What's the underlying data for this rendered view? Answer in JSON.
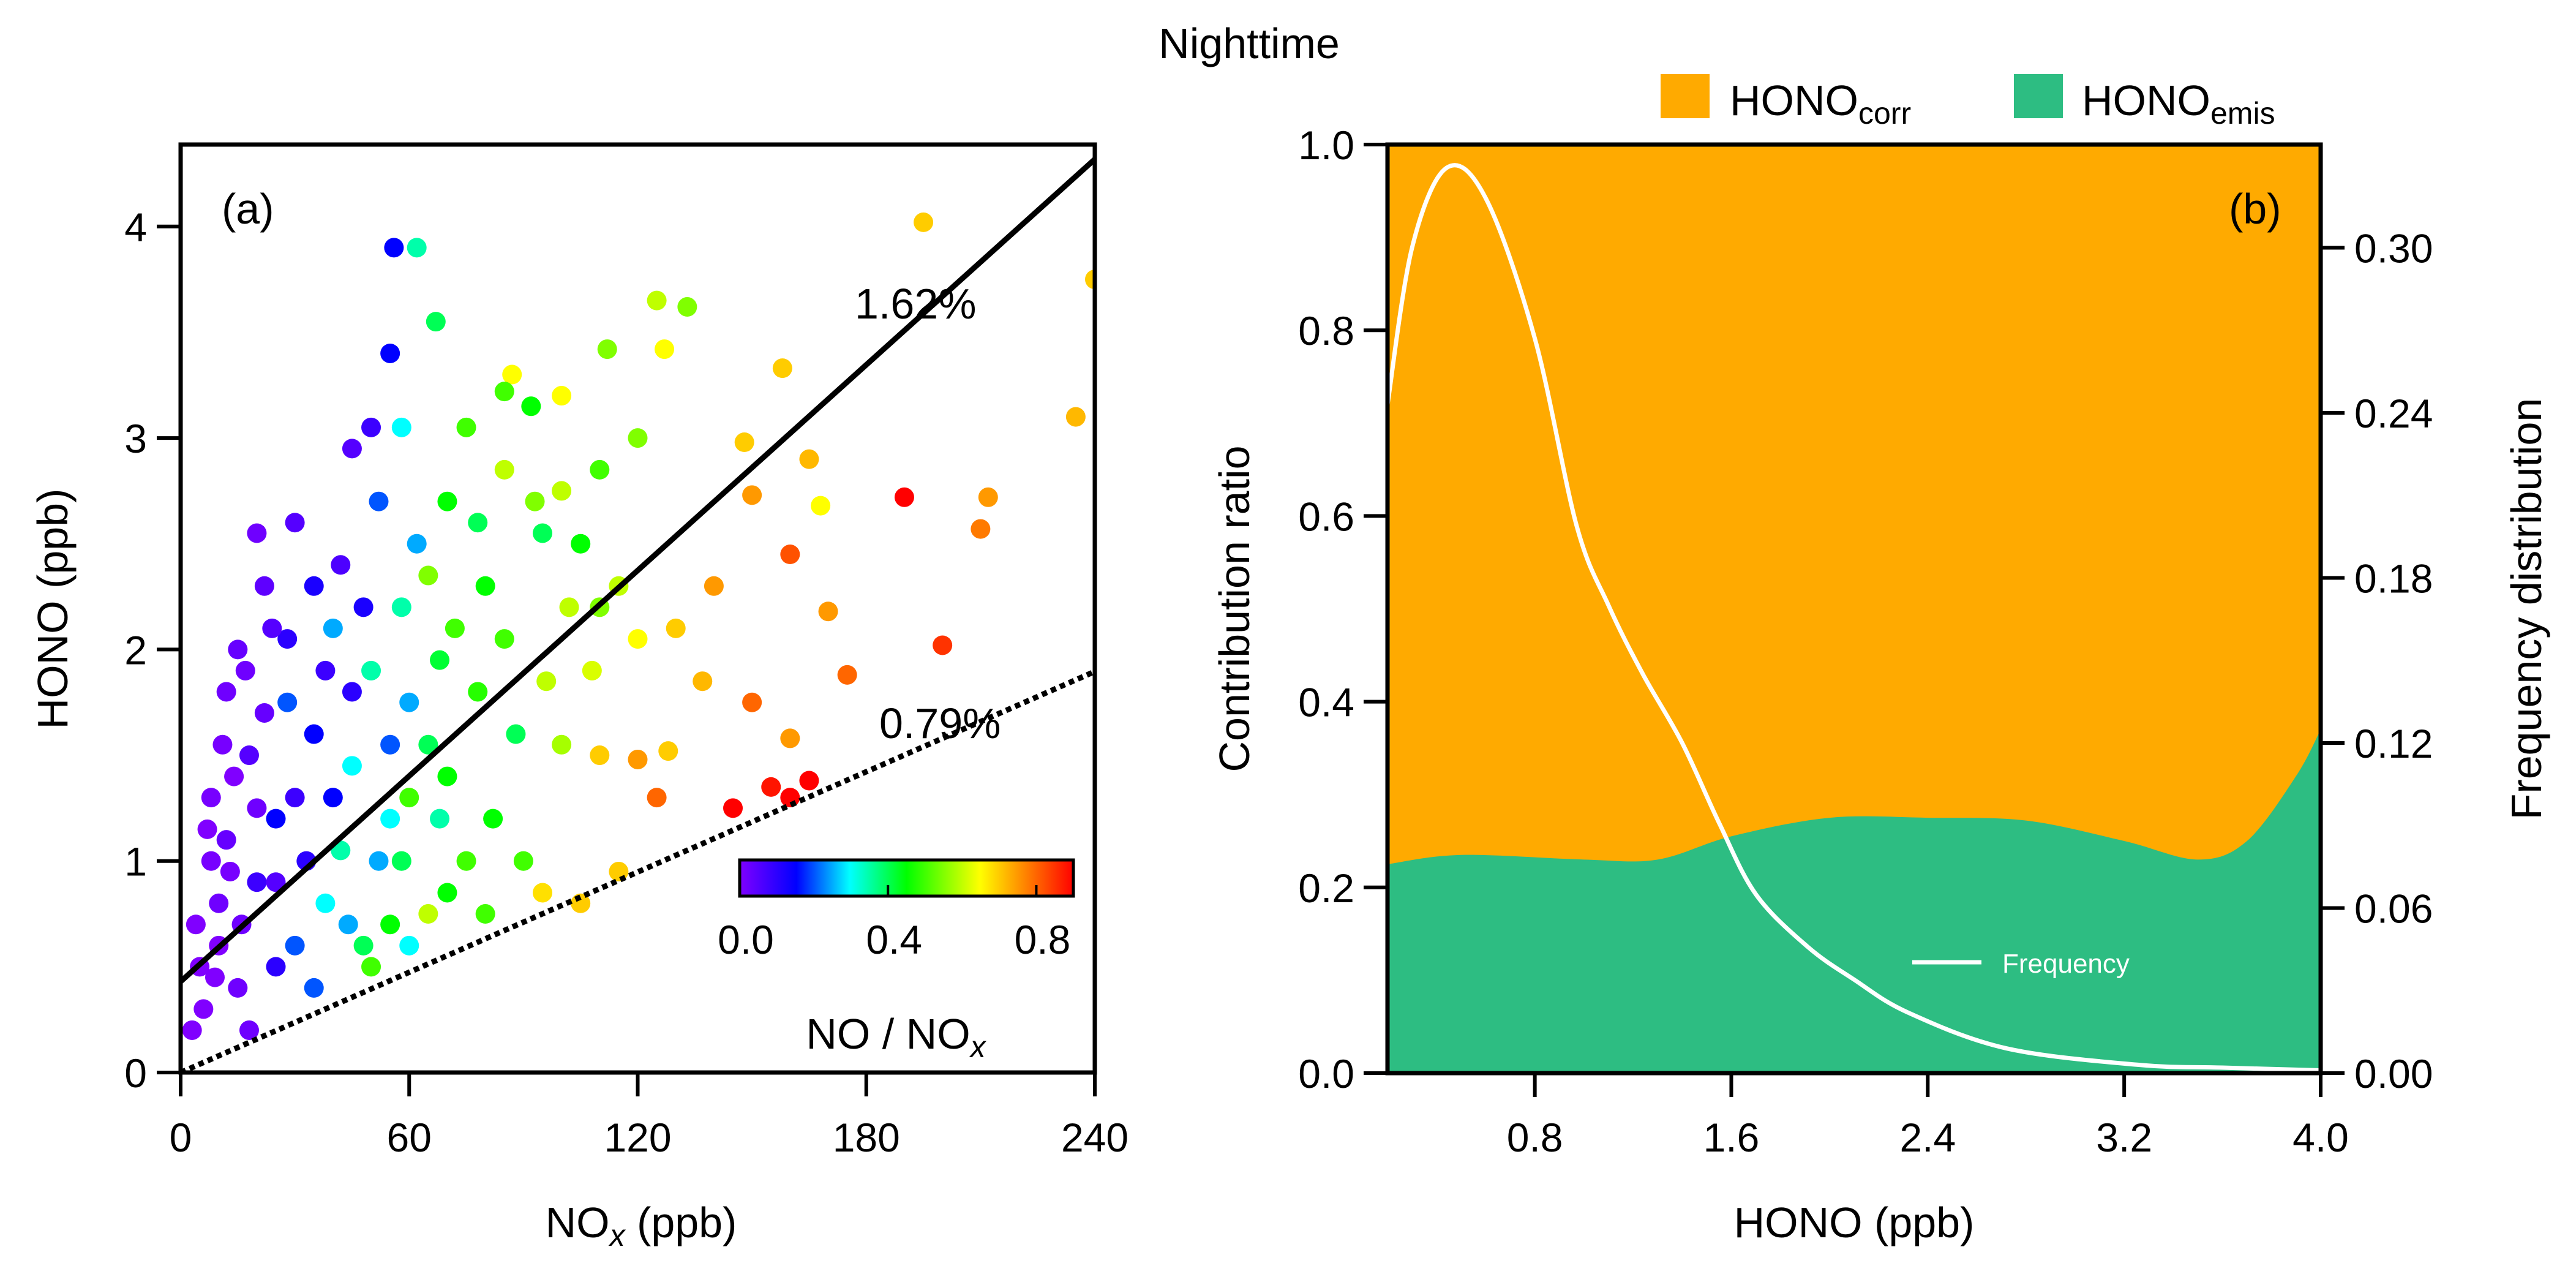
{
  "title": "Nighttime",
  "colors": {
    "corr": "#FFAA00",
    "emis": "#2DBD82",
    "frequency_line": "#FFFFFF"
  },
  "chart_data": [
    {
      "panel": "(a)",
      "type": "scatter",
      "xlabel": {
        "main": "NO",
        "sub": "x",
        "unit": " (ppb)"
      },
      "ylabel": "HONO (ppb)",
      "xlim": [
        0,
        240
      ],
      "ylim": [
        0,
        4.4
      ],
      "xticks": [
        "0",
        "60",
        "120",
        "180",
        "240"
      ],
      "yticks": [
        "0",
        "1",
        "2",
        "3",
        "4"
      ],
      "colorbar": {
        "label_main": "NO / NO",
        "label_sub": "x",
        "range": [
          0,
          0.9
        ],
        "ticks": [
          "0.0",
          "0.4",
          "0.8"
        ]
      },
      "lines": [
        {
          "name": "slope-1.62",
          "label": "1.62%",
          "style": "solid",
          "intercept": 0.43,
          "slope": 0.0162
        },
        {
          "name": "slope-0.79",
          "label": "0.79%",
          "style": "dotted",
          "intercept": 0.0,
          "slope": 0.0079
        }
      ],
      "points_columns": [
        "NOx",
        "HONO",
        "NO_NOx"
      ],
      "points": [
        [
          56,
          3.9,
          0.15
        ],
        [
          62,
          3.9,
          0.35
        ],
        [
          67,
          3.55,
          0.4
        ],
        [
          195,
          4.02,
          0.7
        ],
        [
          240,
          3.75,
          0.7
        ],
        [
          235,
          3.1,
          0.72
        ],
        [
          125,
          3.65,
          0.6
        ],
        [
          133,
          3.62,
          0.55
        ],
        [
          112,
          3.42,
          0.55
        ],
        [
          87,
          3.3,
          0.65
        ],
        [
          85,
          3.22,
          0.5
        ],
        [
          100,
          3.2,
          0.65
        ],
        [
          127,
          3.42,
          0.65
        ],
        [
          158,
          3.33,
          0.7
        ],
        [
          148,
          2.98,
          0.7
        ],
        [
          165,
          2.9,
          0.72
        ],
        [
          150,
          2.73,
          0.75
        ],
        [
          190,
          2.72,
          0.9
        ],
        [
          212,
          2.72,
          0.75
        ],
        [
          210,
          2.57,
          0.78
        ],
        [
          168,
          2.68,
          0.65
        ],
        [
          160,
          2.45,
          0.82
        ],
        [
          170,
          2.18,
          0.75
        ],
        [
          200,
          2.02,
          0.85
        ],
        [
          175,
          1.88,
          0.8
        ],
        [
          150,
          1.75,
          0.8
        ],
        [
          160,
          1.58,
          0.75
        ],
        [
          165,
          1.38,
          0.9
        ],
        [
          160,
          1.3,
          0.92
        ],
        [
          155,
          1.35,
          0.88
        ],
        [
          145,
          1.25,
          0.9
        ],
        [
          125,
          1.3,
          0.8
        ],
        [
          120,
          1.48,
          0.75
        ],
        [
          110,
          1.5,
          0.7
        ],
        [
          128,
          1.52,
          0.7
        ],
        [
          137,
          1.85,
          0.72
        ],
        [
          140,
          2.3,
          0.75
        ],
        [
          130,
          2.1,
          0.7
        ],
        [
          120,
          2.05,
          0.65
        ],
        [
          115,
          2.3,
          0.6
        ],
        [
          110,
          2.2,
          0.55
        ],
        [
          105,
          2.5,
          0.45
        ],
        [
          95,
          2.55,
          0.4
        ],
        [
          93,
          2.7,
          0.55
        ],
        [
          85,
          2.85,
          0.6
        ],
        [
          75,
          3.05,
          0.5
        ],
        [
          92,
          3.15,
          0.45
        ],
        [
          120,
          3.0,
          0.55
        ],
        [
          110,
          2.85,
          0.5
        ],
        [
          100,
          2.75,
          0.6
        ],
        [
          96,
          1.85,
          0.6
        ],
        [
          88,
          1.6,
          0.4
        ],
        [
          82,
          1.2,
          0.45
        ],
        [
          75,
          1.0,
          0.5
        ],
        [
          95,
          0.85,
          0.68
        ],
        [
          105,
          0.8,
          0.7
        ],
        [
          115,
          0.95,
          0.7
        ],
        [
          90,
          1.0,
          0.5
        ],
        [
          70,
          0.85,
          0.45
        ],
        [
          65,
          0.75,
          0.6
        ],
        [
          50,
          0.5,
          0.5
        ],
        [
          48,
          0.6,
          0.4
        ],
        [
          55,
          0.7,
          0.45
        ],
        [
          60,
          0.6,
          0.3
        ],
        [
          58,
          3.05,
          0.3
        ],
        [
          55,
          3.4,
          0.15
        ],
        [
          50,
          3.05,
          0.08
        ],
        [
          45,
          2.95,
          0.05
        ],
        [
          30,
          2.6,
          0.05
        ],
        [
          40,
          2.1,
          0.25
        ],
        [
          35,
          1.6,
          0.15
        ],
        [
          28,
          1.75,
          0.2
        ],
        [
          45,
          1.45,
          0.3
        ],
        [
          50,
          1.9,
          0.35
        ],
        [
          58,
          2.2,
          0.35
        ],
        [
          62,
          2.5,
          0.25
        ],
        [
          65,
          2.35,
          0.55
        ],
        [
          70,
          2.7,
          0.45
        ],
        [
          72,
          2.1,
          0.5
        ],
        [
          78,
          1.8,
          0.48
        ],
        [
          65,
          1.55,
          0.4
        ],
        [
          60,
          1.3,
          0.5
        ],
        [
          55,
          1.2,
          0.3
        ],
        [
          42,
          1.05,
          0.35
        ],
        [
          38,
          0.8,
          0.3
        ],
        [
          30,
          0.6,
          0.2
        ],
        [
          25,
          1.2,
          0.15
        ],
        [
          20,
          0.9,
          0.08
        ],
        [
          18,
          1.5,
          0.05
        ],
        [
          15,
          2.0,
          0.03
        ],
        [
          22,
          2.3,
          0.04
        ],
        [
          12,
          1.8,
          0.02
        ],
        [
          8,
          1.3,
          0.01
        ],
        [
          10,
          0.8,
          0.02
        ],
        [
          5,
          0.5,
          0.0
        ],
        [
          6,
          0.3,
          0.0
        ],
        [
          3,
          0.2,
          0.0
        ],
        [
          15,
          0.4,
          0.02
        ],
        [
          12,
          1.1,
          0.03
        ],
        [
          25,
          0.5,
          0.1
        ],
        [
          35,
          0.4,
          0.2
        ],
        [
          45,
          1.8,
          0.1
        ],
        [
          35,
          2.3,
          0.12
        ],
        [
          20,
          2.55,
          0.02
        ],
        [
          28,
          2.05,
          0.1
        ],
        [
          42,
          2.4,
          0.06
        ],
        [
          52,
          2.7,
          0.2
        ],
        [
          60,
          1.75,
          0.25
        ],
        [
          68,
          1.95,
          0.42
        ],
        [
          80,
          2.3,
          0.45
        ],
        [
          85,
          2.05,
          0.5
        ],
        [
          102,
          2.2,
          0.6
        ],
        [
          100,
          1.55,
          0.58
        ],
        [
          108,
          1.9,
          0.62
        ],
        [
          78,
          2.6,
          0.4
        ],
        [
          68,
          1.2,
          0.35
        ],
        [
          52,
          1.0,
          0.25
        ],
        [
          80,
          0.75,
          0.5
        ],
        [
          10,
          0.6,
          0.0
        ],
        [
          18,
          0.2,
          0.02
        ],
        [
          8,
          1.0,
          0.01
        ],
        [
          14,
          1.4,
          0.0
        ],
        [
          22,
          1.7,
          0.03
        ],
        [
          30,
          1.3,
          0.08
        ],
        [
          38,
          1.9,
          0.08
        ],
        [
          25,
          0.9,
          0.05
        ],
        [
          4,
          0.7,
          0.0
        ],
        [
          7,
          1.15,
          0.0
        ],
        [
          11,
          1.55,
          0.01
        ],
        [
          16,
          0.7,
          0.02
        ],
        [
          20,
          1.25,
          0.02
        ],
        [
          9,
          0.45,
          0.0
        ],
        [
          13,
          0.95,
          0.01
        ],
        [
          17,
          1.9,
          0.02
        ],
        [
          24,
          2.1,
          0.05
        ],
        [
          33,
          1.0,
          0.1
        ],
        [
          40,
          1.3,
          0.15
        ],
        [
          48,
          2.2,
          0.12
        ],
        [
          55,
          1.55,
          0.2
        ],
        [
          44,
          0.7,
          0.25
        ],
        [
          58,
          1.0,
          0.4
        ],
        [
          70,
          1.4,
          0.45
        ]
      ]
    },
    {
      "panel": "(b)",
      "type": "area",
      "xlabel": "HONO (ppb)",
      "ylabel": "Contribution ratio",
      "y2label": "Frequency distribution",
      "xlim": [
        0.2,
        4.0
      ],
      "ylim": [
        0,
        1.0
      ],
      "y2lim": [
        0,
        0.3375
      ],
      "xticks": [
        "0.8",
        "1.6",
        "2.4",
        "3.2",
        "4.0"
      ],
      "yticks": [
        "0.0",
        "0.2",
        "0.4",
        "0.6",
        "0.8",
        "1.0"
      ],
      "y2ticks": [
        "0.00",
        "0.06",
        "0.12",
        "0.18",
        "0.24",
        "0.30"
      ],
      "legend": {
        "corr_main": "HONO",
        "corr_sub": "corr",
        "emis_main": "HONO",
        "emis_sub": "emis",
        "frequency": "Frequency"
      },
      "series": [
        {
          "name": "HONO_emis fraction",
          "x": [
            0.2,
            0.5,
            1.0,
            1.3,
            1.6,
            2.0,
            2.4,
            2.8,
            3.2,
            3.5,
            3.7,
            3.9,
            4.0
          ],
          "values": [
            0.225,
            0.235,
            0.23,
            0.23,
            0.255,
            0.275,
            0.275,
            0.272,
            0.25,
            0.23,
            0.25,
            0.32,
            0.37
          ]
        },
        {
          "name": "HONO_corr fraction",
          "note": "1 - HONO_emis fraction"
        },
        {
          "name": "Frequency",
          "axis": "right",
          "x": [
            0.2,
            0.3,
            0.44,
            0.6,
            0.8,
            0.97,
            1.1,
            1.24,
            1.4,
            1.55,
            1.7,
            1.91,
            2.1,
            2.32,
            2.72,
            3.26,
            3.6,
            4.0
          ],
          "values": [
            0.243,
            0.3,
            0.329,
            0.318,
            0.267,
            0.199,
            0.17,
            0.145,
            0.12,
            0.091,
            0.065,
            0.046,
            0.034,
            0.022,
            0.009,
            0.003,
            0.002,
            0.001
          ]
        }
      ]
    }
  ]
}
